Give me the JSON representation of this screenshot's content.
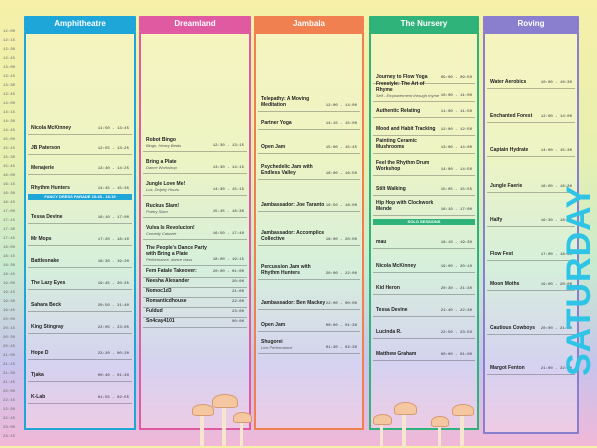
{
  "day": "SATURDAY",
  "times": [
    "12:00",
    "12:15",
    "12:30",
    "12:45",
    "13:00",
    "13:15",
    "13:30",
    "13:45",
    "14:00",
    "14:15",
    "14:30",
    "14:45",
    "15:00",
    "15:15",
    "15:30",
    "15:45",
    "16:00",
    "16:15",
    "16:30",
    "16:45",
    "17:00",
    "17:15",
    "17:30",
    "17:45",
    "18:00",
    "18:15",
    "18:30",
    "18:45",
    "19:00",
    "19:15",
    "19:30",
    "19:45",
    "20:00",
    "20:15",
    "20:30",
    "20:45",
    "21:00",
    "21:15",
    "21:30",
    "21:45",
    "22:00",
    "22:15",
    "22:30",
    "22:45",
    "23:00",
    "23:15"
  ],
  "stages": [
    {
      "name": "Amphitheatre",
      "color": "#1ea6d9",
      "slots": [
        {
          "title": "Nicola McKinney",
          "time": "11:50 - 13:45",
          "h": 13
        },
        {
          "title": "JB Paterson",
          "time": "12:55 - 13:25",
          "h": 20
        },
        {
          "title": "Menajerie",
          "time": "13:40 - 14:25",
          "h": 20
        },
        {
          "title": "Rhythm Hunters",
          "time": "14:45 - 15:35",
          "h": 20
        },
        {
          "title": "Tessa Devine",
          "time": "16:10 - 17:00",
          "h": 22
        },
        {
          "title": "Mr Mops",
          "time": "17:20 - 18:10",
          "h": 22
        },
        {
          "title": "Battlesnake",
          "time": "18:30 - 19:20",
          "h": 22
        },
        {
          "title": "The Lazy Eyes",
          "time": "19:45 - 20:35",
          "h": 22
        },
        {
          "title": "Sahara Beck",
          "time": "20:50 - 21:40",
          "h": 22
        },
        {
          "title": "King Stingray",
          "time": "22:05 - 23:05",
          "h": 22
        },
        {
          "title": "Hope D",
          "time": "23:20 - 00:20",
          "h": 26
        },
        {
          "title": "Tjaka",
          "time": "00:40 - 01:40",
          "h": 22
        },
        {
          "title": "K-Lab",
          "time": "01:55 - 02:55",
          "h": 22
        }
      ],
      "band": {
        "label": "FANCY DRESS PARADE",
        "time": "15:45 - 16:15"
      }
    },
    {
      "name": "Dreamland",
      "color": "#e05aa2",
      "slots": [
        {
          "title": "Robot Bingo",
          "sub": "Bingo, Heavy Beats",
          "time": "12:30 - 13:15",
          "h": 22
        },
        {
          "title": "Bring a Plate",
          "sub": "Dance Workshop",
          "time": "13:30 - 14:15",
          "h": 22
        },
        {
          "title": "Jungle Love Me!",
          "sub": "Lox, Dolphy Hours",
          "time": "14:30 - 15:15",
          "h": 22
        },
        {
          "title": "Ruckus Slam!",
          "sub": "Poetry Slam",
          "time": "15:45 - 16:30",
          "h": 22
        },
        {
          "title": "Vulva Is Revolucion!",
          "sub": "Comedy Cabaret",
          "time": "16:50 - 17:40",
          "h": 22
        },
        {
          "title": "The People's Dance Party with Bring a Plate",
          "sub": "Performance, dance class",
          "time": "18:00 - 19:15",
          "h": 26
        },
        {
          "title": "Fem Fatale Takeover:",
          "time": "20:00 - 01:00",
          "h": 12
        },
        {
          "title": "Neesha Alexander",
          "time": "20:00",
          "h": 10
        },
        {
          "title": "Nomoc1d3",
          "time": "21:00",
          "h": 10
        },
        {
          "title": "Romanticdhouse",
          "time": "22:00",
          "h": 10
        },
        {
          "title": "Fuldud",
          "time": "23:00",
          "h": 10
        },
        {
          "title": "Sn4cay4101",
          "time": "00:00",
          "h": 10
        }
      ]
    },
    {
      "name": "Jambala",
      "color": "#f08050",
      "slots": [
        {
          "title": "Telepathy: A Moving Meditation",
          "time": "12:00 - 14:00",
          "h": 22
        },
        {
          "title": "Partner Yoga",
          "time": "14:15 - 15:00",
          "h": 18
        },
        {
          "title": "Open Jam",
          "time": "15:00 - 15:45",
          "h": 24
        },
        {
          "title": "Psychedelic Jam with Endless Valley",
          "time": "16:00 - 16:50",
          "h": 26
        },
        {
          "title": "Jambassador: Joe Taranto",
          "time": "16:50 - 18:00",
          "h": 32
        },
        {
          "title": "Jambassador: Accomplice Collective",
          "time": "18:00 - 20:00",
          "h": 34
        },
        {
          "title": "Percussion Jam with Rhythm Hunters",
          "time": "20:00 - 22:00",
          "h": 34
        },
        {
          "title": "Jambassador: Ben Mackey",
          "time": "22:00 - 00:00",
          "h": 30
        },
        {
          "title": "Open Jam",
          "time": "00:00 - 01:30",
          "h": 22
        },
        {
          "title": "Shugorei",
          "sub": "Live Performance",
          "time": "01:30 - 02:30",
          "h": 22
        }
      ]
    },
    {
      "name": "The Nursery",
      "color": "#2fb37b",
      "slots": [
        {
          "title": "Journey to Flow Yoga",
          "time": "09:00 - 09:50",
          "h": 14
        },
        {
          "title": "Freestyle: The Art of Rhyme",
          "sub": "Self - Empowerment through rhyme",
          "time": "10:00 - 11:00",
          "h": 18
        },
        {
          "title": "Authentic Relating",
          "time": "11:00 - 11:50",
          "h": 16
        },
        {
          "title": "Mood and Habit Tracking",
          "time": "12:00 - 12:50",
          "h": 18
        },
        {
          "title": "Painting Ceramic Mushrooms",
          "time": "13:00 - 14:00",
          "h": 18
        },
        {
          "title": "Feel the Rhythm Drum Workshop",
          "time": "14:00 - 14:50",
          "h": 22
        },
        {
          "title": "Stilt Walking",
          "time": "15:05 - 15:55",
          "h": 20
        },
        {
          "title": "Hip Hop with Clockwork Mende",
          "time": "16:10 - 17:00",
          "h": 20
        }
      ],
      "band": {
        "label": "SOLO SESSIONS",
        "time": ""
      },
      "slots2": [
        {
          "title": "mau",
          "time": "18:10 - 19:30",
          "h": 22
        },
        {
          "title": "Nicola McKinney",
          "time": "19:00 - 20:10",
          "h": 24
        },
        {
          "title": "Kid Heron",
          "time": "20:30 - 21:30",
          "h": 22
        },
        {
          "title": "Tessa Devine",
          "time": "21:40 - 22:30",
          "h": 22
        },
        {
          "title": "Lucinda R.",
          "time": "22:50 - 23:50",
          "h": 22
        },
        {
          "title": "Matthew Graham",
          "time": "00:00 - 01:00",
          "h": 22
        }
      ]
    },
    {
      "name": "Roving",
      "color": "#8a7fcf",
      "slots": [
        {
          "title": "Water Aerobics",
          "time": "10:00 - 10:30",
          "h": 34
        },
        {
          "title": "Enchanted Forest",
          "time": "12:00 - 14:00",
          "h": 34
        },
        {
          "title": "Captain Hydrate",
          "time": "14:00 - 15:30",
          "h": 34
        },
        {
          "title": "Jungle Faerie",
          "time": "16:00 - 16:30",
          "h": 36
        },
        {
          "title": "Halfy",
          "time": "16:30 - 18:00",
          "h": 34
        },
        {
          "title": "Flow Fest",
          "time": "17:00 - 18:30",
          "h": 34
        },
        {
          "title": "Moon Moths",
          "time": "19:00 - 20:00",
          "h": 30
        },
        {
          "title": "Cautious Cowboys",
          "time": "20:00 - 21:00",
          "h": 44
        },
        {
          "title": "Margot Fenton",
          "time": "21:00 - 22:00",
          "h": 40
        }
      ]
    }
  ]
}
